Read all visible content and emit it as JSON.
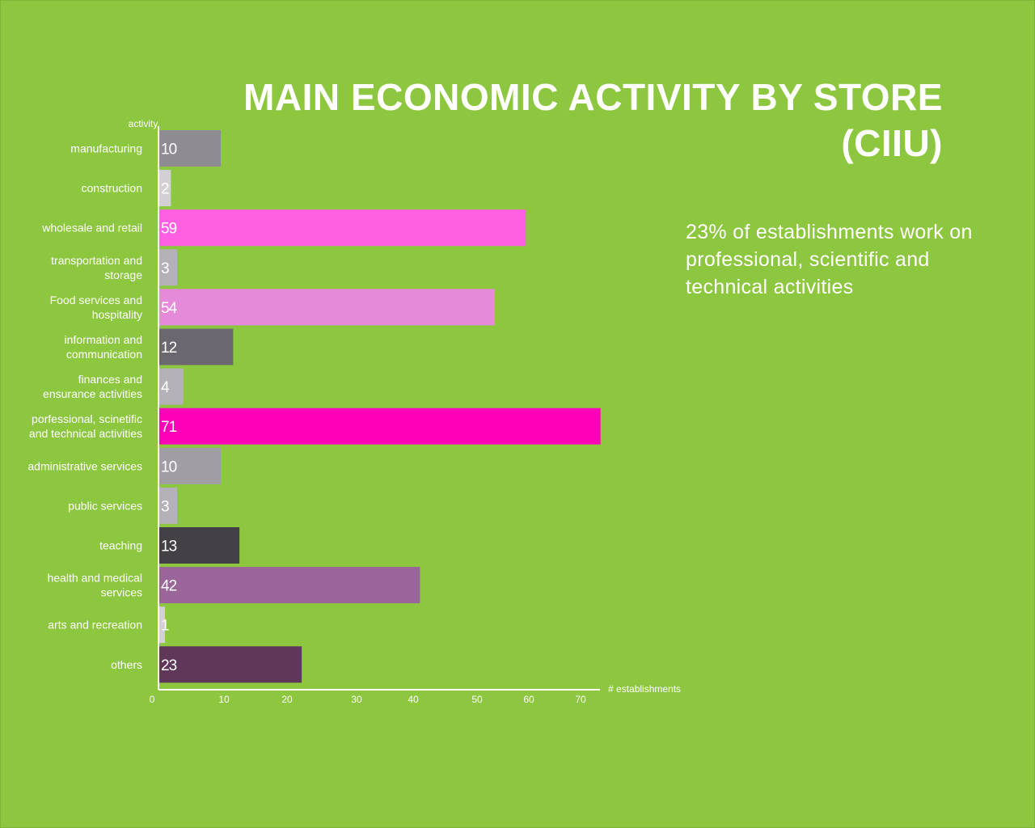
{
  "title_line1": "MAIN ECONOMIC ACTIVITY BY STORE",
  "title_line2": "(CIIU)",
  "insight": "23% of  establishments work on professional, scientific and technical activities",
  "chart_data": {
    "type": "bar",
    "orientation": "horizontal",
    "ylabel": "activity",
    "xlabel": "#  establishments",
    "categories": [
      [
        "manufacturing"
      ],
      [
        "construction"
      ],
      [
        "wholesale and retail"
      ],
      [
        "transportation and",
        "storage"
      ],
      [
        "Food services and",
        "hospitality"
      ],
      [
        "information and",
        "communication"
      ],
      [
        "finances and",
        "ensurance activities"
      ],
      [
        "porfessional, scinetific",
        "and technical activities"
      ],
      [
        "administrative services"
      ],
      [
        "public services"
      ],
      [
        "teaching"
      ],
      [
        "health and medical",
        "services"
      ],
      [
        "arts and recreation"
      ],
      [
        "others"
      ]
    ],
    "values": [
      10,
      2,
      59,
      3,
      54,
      12,
      4,
      71,
      10,
      3,
      13,
      42,
      1,
      23
    ],
    "bar_colors": [
      "#8f8b92",
      "#d2d0d4",
      "#ff5fe0",
      "#b4b1b8",
      "#e58ad8",
      "#6a6770",
      "#b4b1b8",
      "#ff00b8",
      "#a09ea4",
      "#b4b1b8",
      "#434046",
      "#9a6699",
      "#d2d0d4",
      "#5e3759"
    ],
    "xticks": [
      0,
      10,
      20,
      30,
      40,
      50,
      60,
      70
    ],
    "xlim": [
      0,
      71
    ],
    "grid": false,
    "legend": false
  }
}
